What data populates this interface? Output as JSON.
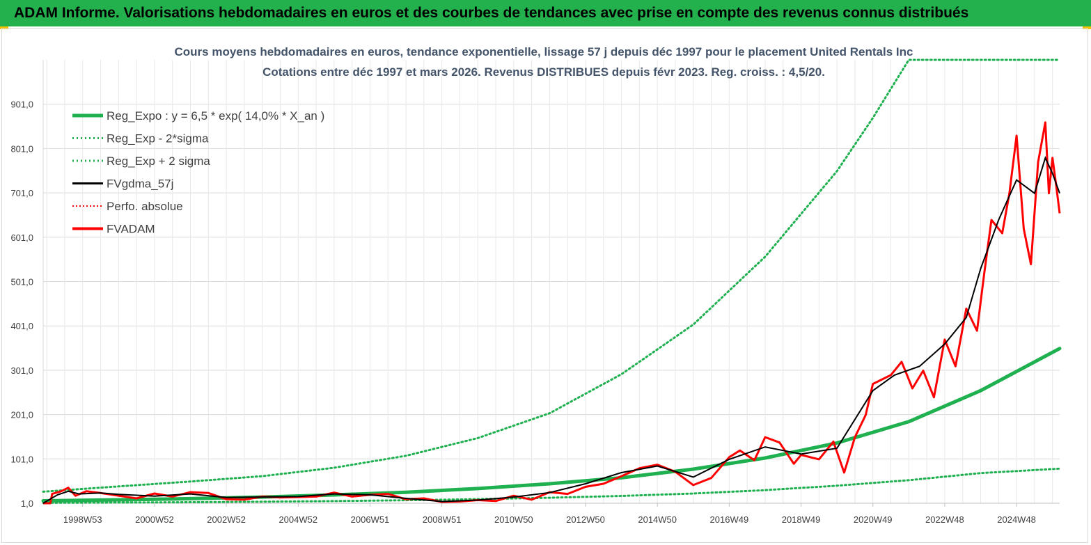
{
  "header": {
    "title": "ADAM Informe. Valorisations hebdomadaires en euros et des courbes de tendances avec prise en compte des revenus connus distribués"
  },
  "colors": {
    "banner": "#23b14d",
    "reg_expo": "#1fb050",
    "sigma": "#1fb050",
    "fvgdma": "#000000",
    "perfo": "#ff0000",
    "fvadam": "#ff0000",
    "grid": "#d9d9d9"
  },
  "chart_data": {
    "type": "line",
    "title": "Cours moyens hebdomadaires en euros, tendance exponentielle, lissage 57 j depuis déc 1997 pour le placement United Rentals Inc",
    "subtitle": "Cotations entre déc 1997 et mars 2026. Revenus DISTRIBUES depuis févr 2023. Reg. croiss. : 4,5/20.",
    "xlabel": "",
    "ylabel": "",
    "x_range": [
      1997.9,
      2026.2
    ],
    "ylim": [
      1,
      1001
    ],
    "y_ticks": [
      "1,0",
      "101,0",
      "201,0",
      "301,0",
      "401,0",
      "501,0",
      "601,0",
      "701,0",
      "801,0",
      "901,0"
    ],
    "x_ticks": [
      {
        "label": "1998W53",
        "year": 1999.0
      },
      {
        "label": "2000W52",
        "year": 2001.0
      },
      {
        "label": "2002W52",
        "year": 2003.0
      },
      {
        "label": "2004W52",
        "year": 2005.0
      },
      {
        "label": "2006W51",
        "year": 2007.0
      },
      {
        "label": "2008W51",
        "year": 2009.0
      },
      {
        "label": "2010W50",
        "year": 2011.0
      },
      {
        "label": "2012W50",
        "year": 2013.0
      },
      {
        "label": "2014W50",
        "year": 2015.0
      },
      {
        "label": "2016W49",
        "year": 2017.0
      },
      {
        "label": "2018W49",
        "year": 2019.0
      },
      {
        "label": "2020W49",
        "year": 2021.0
      },
      {
        "label": "2022W48",
        "year": 2023.0
      },
      {
        "label": "2024W48",
        "year": 2025.0
      }
    ],
    "legend": [
      {
        "key": "reg_expo",
        "label": "Reg_Expo : y = 6,5 * exp( 14,0% *  X_an )"
      },
      {
        "key": "sigma_minus",
        "label": "Reg_Exp - 2*sigma"
      },
      {
        "key": "sigma_plus",
        "label": "Reg_Exp + 2 sigma"
      },
      {
        "key": "fvgdma",
        "label": "FVgdma_57j"
      },
      {
        "key": "perfo",
        "label": "Perfo. absolue"
      },
      {
        "key": "fvadam",
        "label": "FVADAM"
      }
    ],
    "series": [
      {
        "name": "Reg_Expo",
        "points": [
          [
            1997.9,
            6.5
          ],
          [
            2000,
            8.7
          ],
          [
            2002,
            11.4
          ],
          [
            2004,
            15
          ],
          [
            2006,
            19.8
          ],
          [
            2008,
            25.8
          ],
          [
            2010,
            34.2
          ],
          [
            2012,
            45
          ],
          [
            2014,
            58.5
          ],
          [
            2016,
            78
          ],
          [
            2018,
            103
          ],
          [
            2020,
            137
          ],
          [
            2022,
            185
          ],
          [
            2024,
            255
          ],
          [
            2026.2,
            350
          ]
        ]
      },
      {
        "name": "Reg_Exp - 2*sigma",
        "points": [
          [
            1997.9,
            2
          ],
          [
            2000,
            2.6
          ],
          [
            2002,
            3.4
          ],
          [
            2004,
            4.5
          ],
          [
            2006,
            5.9
          ],
          [
            2008,
            7.7
          ],
          [
            2010,
            10.2
          ],
          [
            2012,
            13.4
          ],
          [
            2014,
            17.5
          ],
          [
            2016,
            23
          ],
          [
            2018,
            30.5
          ],
          [
            2020,
            40.5
          ],
          [
            2022,
            53
          ],
          [
            2024,
            69
          ],
          [
            2026.2,
            79
          ]
        ]
      },
      {
        "name": "Reg_Exp + 2 sigma",
        "points": [
          [
            1997.9,
            27
          ],
          [
            2000,
            39
          ],
          [
            2002,
            50
          ],
          [
            2004,
            62
          ],
          [
            2006,
            81
          ],
          [
            2008,
            108
          ],
          [
            2010,
            148
          ],
          [
            2012,
            204
          ],
          [
            2014,
            292
          ],
          [
            2016,
            404
          ],
          [
            2018,
            557
          ],
          [
            2020,
            750
          ],
          [
            2021,
            870
          ],
          [
            2022,
            1001
          ],
          [
            2026.2,
            1001
          ]
        ]
      },
      {
        "name": "FVgdma_57j",
        "points": [
          [
            1997.9,
            1
          ],
          [
            1998.3,
            20
          ],
          [
            1998.6,
            28
          ],
          [
            1998.9,
            22
          ],
          [
            1999.5,
            24
          ],
          [
            2000,
            21
          ],
          [
            2001,
            17
          ],
          [
            2002,
            22
          ],
          [
            2003,
            14
          ],
          [
            2004,
            15
          ],
          [
            2005,
            16
          ],
          [
            2006,
            22
          ],
          [
            2007,
            20
          ],
          [
            2008,
            12
          ],
          [
            2009,
            5
          ],
          [
            2010,
            8
          ],
          [
            2011,
            15
          ],
          [
            2012,
            25
          ],
          [
            2013,
            45
          ],
          [
            2014,
            70
          ],
          [
            2015,
            85
          ],
          [
            2016,
            60
          ],
          [
            2017,
            100
          ],
          [
            2018,
            128
          ],
          [
            2019,
            112
          ],
          [
            2020,
            125
          ],
          [
            2021,
            255
          ],
          [
            2021.6,
            290
          ],
          [
            2022.3,
            310
          ],
          [
            2023,
            360
          ],
          [
            2023.6,
            420
          ],
          [
            2024,
            530
          ],
          [
            2024.5,
            640
          ],
          [
            2025,
            730
          ],
          [
            2025.5,
            700
          ],
          [
            2025.8,
            780
          ],
          [
            2026,
            745
          ],
          [
            2026.2,
            700
          ]
        ]
      },
      {
        "name": "Perfo. absolue",
        "points": []
      },
      {
        "name": "FVADAM",
        "points": [
          [
            1997.9,
            1
          ],
          [
            1998.1,
            1
          ],
          [
            1998.15,
            22
          ],
          [
            1998.4,
            28
          ],
          [
            1998.6,
            36
          ],
          [
            1998.8,
            18
          ],
          [
            1999.1,
            28
          ],
          [
            1999.5,
            24
          ],
          [
            2000,
            18
          ],
          [
            2000.5,
            12
          ],
          [
            2001,
            23
          ],
          [
            2001.5,
            16
          ],
          [
            2002,
            26
          ],
          [
            2002.5,
            24
          ],
          [
            2003,
            10
          ],
          [
            2003.5,
            9
          ],
          [
            2004,
            16
          ],
          [
            2004.5,
            14
          ],
          [
            2005,
            15
          ],
          [
            2005.5,
            16
          ],
          [
            2006,
            25
          ],
          [
            2006.5,
            16
          ],
          [
            2007,
            20
          ],
          [
            2007.5,
            22
          ],
          [
            2008,
            10
          ],
          [
            2008.5,
            12
          ],
          [
            2009,
            4
          ],
          [
            2009.5,
            5
          ],
          [
            2010,
            8
          ],
          [
            2010.5,
            6
          ],
          [
            2011,
            18
          ],
          [
            2011.5,
            9
          ],
          [
            2012,
            26
          ],
          [
            2012.5,
            22
          ],
          [
            2013,
            38
          ],
          [
            2013.5,
            45
          ],
          [
            2014,
            62
          ],
          [
            2014.5,
            80
          ],
          [
            2015,
            88
          ],
          [
            2015.5,
            72
          ],
          [
            2016,
            42
          ],
          [
            2016.5,
            58
          ],
          [
            2017,
            105
          ],
          [
            2017.3,
            120
          ],
          [
            2017.7,
            98
          ],
          [
            2018,
            150
          ],
          [
            2018.4,
            138
          ],
          [
            2018.8,
            90
          ],
          [
            2019,
            110
          ],
          [
            2019.5,
            100
          ],
          [
            2019.9,
            140
          ],
          [
            2020.2,
            70
          ],
          [
            2020.5,
            150
          ],
          [
            2020.8,
            200
          ],
          [
            2021,
            270
          ],
          [
            2021.5,
            290
          ],
          [
            2021.8,
            320
          ],
          [
            2022.1,
            260
          ],
          [
            2022.4,
            300
          ],
          [
            2022.7,
            240
          ],
          [
            2023,
            370
          ],
          [
            2023.3,
            310
          ],
          [
            2023.6,
            440
          ],
          [
            2023.9,
            390
          ],
          [
            2024.1,
            520
          ],
          [
            2024.3,
            640
          ],
          [
            2024.6,
            610
          ],
          [
            2024.8,
            700
          ],
          [
            2025,
            830
          ],
          [
            2025.2,
            620
          ],
          [
            2025.4,
            540
          ],
          [
            2025.6,
            770
          ],
          [
            2025.8,
            860
          ],
          [
            2025.9,
            700
          ],
          [
            2026,
            780
          ],
          [
            2026.1,
            720
          ],
          [
            2026.2,
            655
          ]
        ]
      }
    ]
  }
}
